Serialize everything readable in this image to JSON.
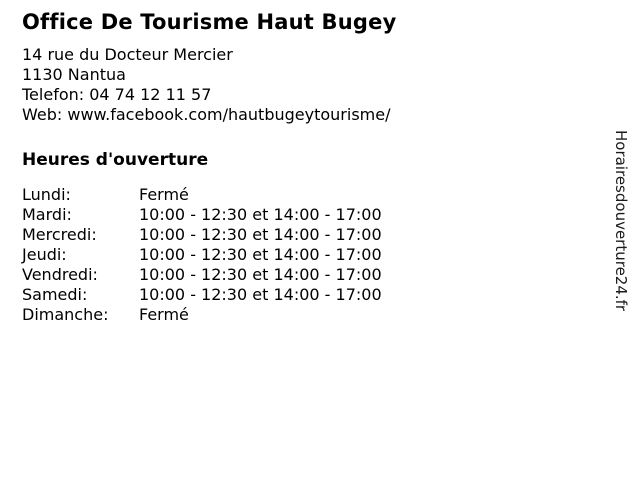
{
  "business": {
    "title": "Office De Tourisme Haut Bugey",
    "address_line1": "14 rue du Docteur Mercier",
    "address_line2": "1130 Nantua",
    "phone_line": "Telefon: 04 74 12 11 57",
    "web_line": "Web: www.facebook.com/hautbugeytourisme/"
  },
  "hours": {
    "heading": "Heures d'ouverture",
    "rows": [
      {
        "day": "Lundi:",
        "times": "Fermé"
      },
      {
        "day": "Mardi:",
        "times": "10:00 - 12:30 et 14:00 - 17:00"
      },
      {
        "day": "Mercredi:",
        "times": "10:00 - 12:30 et 14:00 - 17:00"
      },
      {
        "day": "Jeudi:",
        "times": "10:00 - 12:30 et 14:00 - 17:00"
      },
      {
        "day": "Vendredi:",
        "times": "10:00 - 12:30 et 14:00 - 17:00"
      },
      {
        "day": "Samedi:",
        "times": "10:00 - 12:30 et 14:00 - 17:00"
      },
      {
        "day": "Dimanche:",
        "times": "Fermé"
      }
    ]
  },
  "watermark": "Horairesdouverture24.fr",
  "colors": {
    "background": "#ffffff",
    "text": "#000000"
  }
}
